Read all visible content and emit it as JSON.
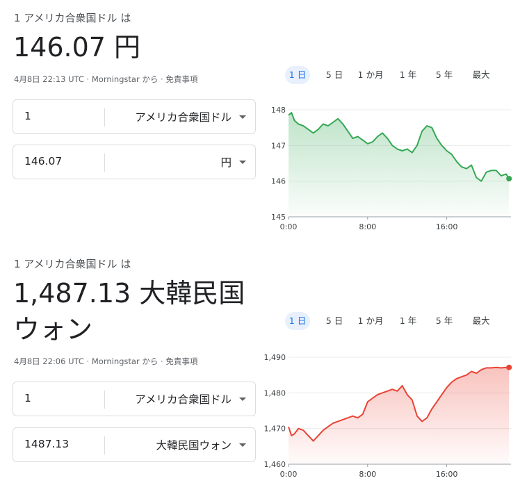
{
  "converters": [
    {
      "pre_label": "1 アメリカ合衆国ドル は",
      "result_line1": "146.07 円",
      "result_line2": "",
      "meta": {
        "timestamp": "4月8日 22:13 UTC",
        "source": "Morningstar から",
        "disclaimer": "免責事項"
      },
      "from": {
        "amount": "1",
        "currency": "アメリカ合衆国ドル"
      },
      "to": {
        "amount": "146.07",
        "currency": "円"
      },
      "tabs": [
        {
          "label": "1 日",
          "active": true
        },
        {
          "label": "5 日",
          "active": false
        },
        {
          "label": "1 か月",
          "active": false
        },
        {
          "label": "1 年",
          "active": false
        },
        {
          "label": "5 年",
          "active": false
        },
        {
          "label": "最大",
          "active": false
        }
      ]
    },
    {
      "pre_label": "1 アメリカ合衆国ドル は",
      "result_line1": "1,487.13 大韓民国",
      "result_line2": "ウォン",
      "meta": {
        "timestamp": "4月8日 22:06 UTC",
        "source": "Morningstar から",
        "disclaimer": "免責事項"
      },
      "from": {
        "amount": "1",
        "currency": "アメリカ合衆国ドル"
      },
      "to": {
        "amount": "1487.13",
        "currency": "大韓民国ウォン"
      },
      "tabs": [
        {
          "label": "1 日",
          "active": true
        },
        {
          "label": "5 日",
          "active": false
        },
        {
          "label": "1 か月",
          "active": false
        },
        {
          "label": "1 年",
          "active": false
        },
        {
          "label": "5 年",
          "active": false
        },
        {
          "label": "最大",
          "active": false
        }
      ]
    }
  ],
  "chart_data": [
    {
      "type": "area",
      "title": "",
      "color": "#34a853",
      "ylim": [
        145,
        148
      ],
      "y_ticks": [
        "145",
        "146",
        "147",
        "148"
      ],
      "xlim": [
        0,
        22.5
      ],
      "x_ticks": [
        {
          "label": "0:00",
          "x": 0
        },
        {
          "label": "8:00",
          "x": 8
        },
        {
          "label": "16:00",
          "x": 16
        }
      ],
      "grid": true,
      "x": [
        0,
        0.3,
        0.6,
        1,
        1.5,
        2,
        2.5,
        3,
        3.5,
        4,
        4.5,
        5,
        5.5,
        6,
        6.5,
        7,
        7.5,
        8,
        8.5,
        9,
        9.5,
        10,
        10.5,
        11,
        11.5,
        12,
        12.5,
        13,
        13.5,
        14,
        14.5,
        15,
        15.5,
        16,
        16.5,
        17,
        17.5,
        18,
        18.5,
        19,
        19.5,
        20,
        20.5,
        21,
        21.5,
        22,
        22.3
      ],
      "values": [
        147.85,
        147.92,
        147.7,
        147.6,
        147.55,
        147.45,
        147.35,
        147.45,
        147.6,
        147.55,
        147.65,
        147.75,
        147.6,
        147.4,
        147.2,
        147.25,
        147.15,
        147.05,
        147.1,
        147.25,
        147.35,
        147.2,
        147.0,
        146.9,
        146.85,
        146.9,
        146.8,
        147.0,
        147.4,
        147.55,
        147.5,
        147.2,
        147.0,
        146.85,
        146.75,
        146.55,
        146.4,
        146.35,
        146.45,
        146.1,
        146.0,
        146.25,
        146.3,
        146.3,
        146.15,
        146.2,
        146.07
      ]
    },
    {
      "type": "area",
      "title": "",
      "color": "#ea4335",
      "ylim": [
        1460,
        1490
      ],
      "y_ticks": [
        "1,460",
        "1,470",
        "1,480",
        "1,490"
      ],
      "xlim": [
        0,
        22.5
      ],
      "x_ticks": [
        {
          "label": "0:00",
          "x": 0
        },
        {
          "label": "8:00",
          "x": 8
        },
        {
          "label": "16:00",
          "x": 16
        }
      ],
      "grid": true,
      "x": [
        0,
        0.3,
        0.6,
        1,
        1.5,
        2,
        2.5,
        3,
        3.5,
        4,
        4.5,
        5,
        5.5,
        6,
        6.5,
        7,
        7.5,
        8,
        8.5,
        9,
        9.5,
        10,
        10.5,
        11,
        11.5,
        12,
        12.5,
        13,
        13.5,
        14,
        14.5,
        15,
        15.5,
        16,
        16.5,
        17,
        17.5,
        18,
        18.5,
        19,
        19.5,
        20,
        20.5,
        21,
        21.5,
        22,
        22.3
      ],
      "values": [
        1470.5,
        1468.0,
        1468.5,
        1470.0,
        1469.5,
        1468.0,
        1466.5,
        1468.0,
        1469.5,
        1470.5,
        1471.5,
        1472.0,
        1472.5,
        1473.0,
        1473.5,
        1473.0,
        1474.0,
        1477.5,
        1478.5,
        1479.5,
        1480.0,
        1480.5,
        1481.0,
        1480.5,
        1482.0,
        1479.5,
        1478.0,
        1473.5,
        1472.0,
        1473.0,
        1475.5,
        1477.5,
        1479.5,
        1481.5,
        1483.0,
        1484.0,
        1484.5,
        1485.0,
        1486.0,
        1485.5,
        1486.5,
        1487.0,
        1487.0,
        1487.13,
        1487.0,
        1487.1,
        1487.13
      ]
    }
  ]
}
